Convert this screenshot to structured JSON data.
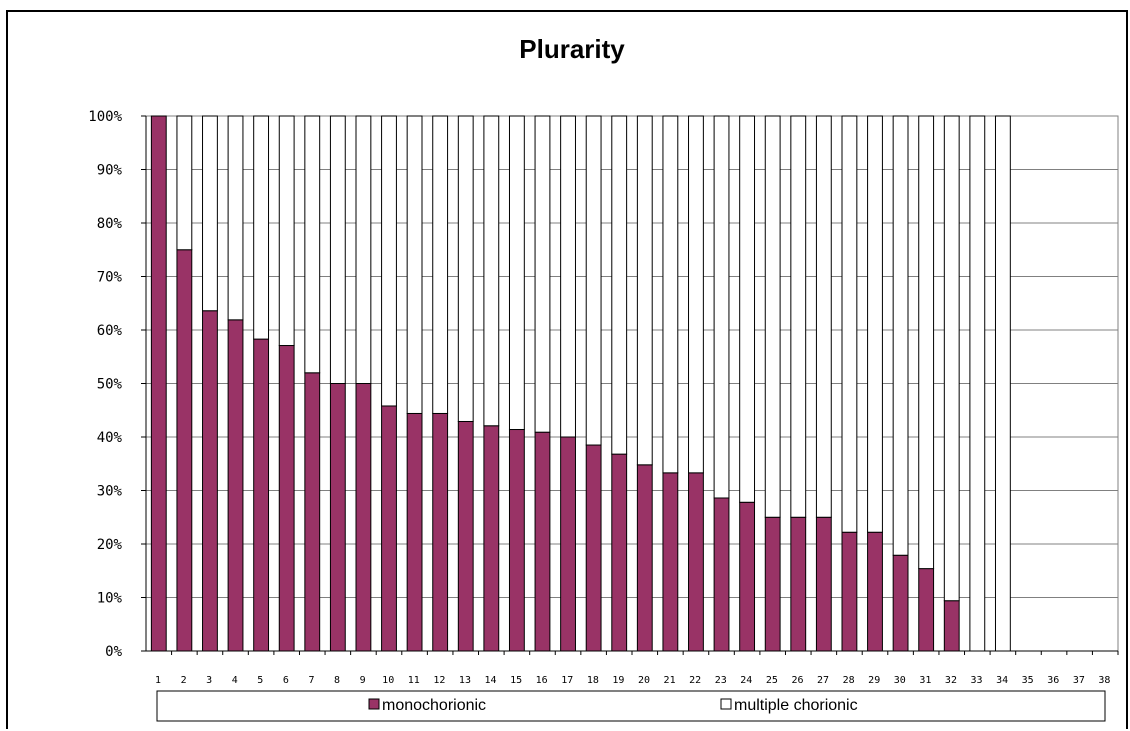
{
  "chart_data": {
    "type": "bar",
    "stacked": "percent",
    "title": "Plurarity",
    "xlabel": "",
    "ylabel": "",
    "ylim": [
      0,
      100
    ],
    "yticks": [
      "0%",
      "10%",
      "20%",
      "30%",
      "40%",
      "50%",
      "60%",
      "70%",
      "80%",
      "90%",
      "100%"
    ],
    "categories": [
      "1",
      "2",
      "3",
      "4",
      "5",
      "6",
      "7",
      "8",
      "9",
      "10",
      "11",
      "12",
      "13",
      "14",
      "15",
      "16",
      "17",
      "18",
      "19",
      "20",
      "21",
      "22",
      "23",
      "24",
      "25",
      "26",
      "27",
      "28",
      "29",
      "30",
      "31",
      "32",
      "33",
      "34",
      "35",
      "36",
      "37",
      "38"
    ],
    "series": [
      {
        "name": "monochorionic",
        "color": "#993366",
        "values": [
          100,
          75,
          63.6,
          61.9,
          58.3,
          57.1,
          52,
          50,
          50,
          45.8,
          44.4,
          44.4,
          42.9,
          42.1,
          41.4,
          40.9,
          40,
          38.5,
          36.8,
          34.8,
          33.3,
          33.3,
          28.6,
          27.8,
          25,
          25,
          25,
          22.2,
          22.2,
          17.9,
          15.4,
          9.4,
          0,
          0,
          null,
          null,
          null,
          null
        ]
      },
      {
        "name": "multiple chorionic",
        "color": "#ffffff",
        "values": [
          0,
          25,
          36.4,
          38.1,
          41.7,
          42.9,
          48,
          50,
          50,
          54.2,
          55.6,
          55.6,
          57.1,
          57.9,
          58.6,
          59.1,
          60,
          61.5,
          63.2,
          65.2,
          66.7,
          66.7,
          71.4,
          72.2,
          75,
          75,
          75,
          77.8,
          77.8,
          82.1,
          84.6,
          90.6,
          100,
          100,
          null,
          null,
          null,
          null
        ]
      }
    ],
    "grid": true,
    "legend_position": "bottom"
  }
}
